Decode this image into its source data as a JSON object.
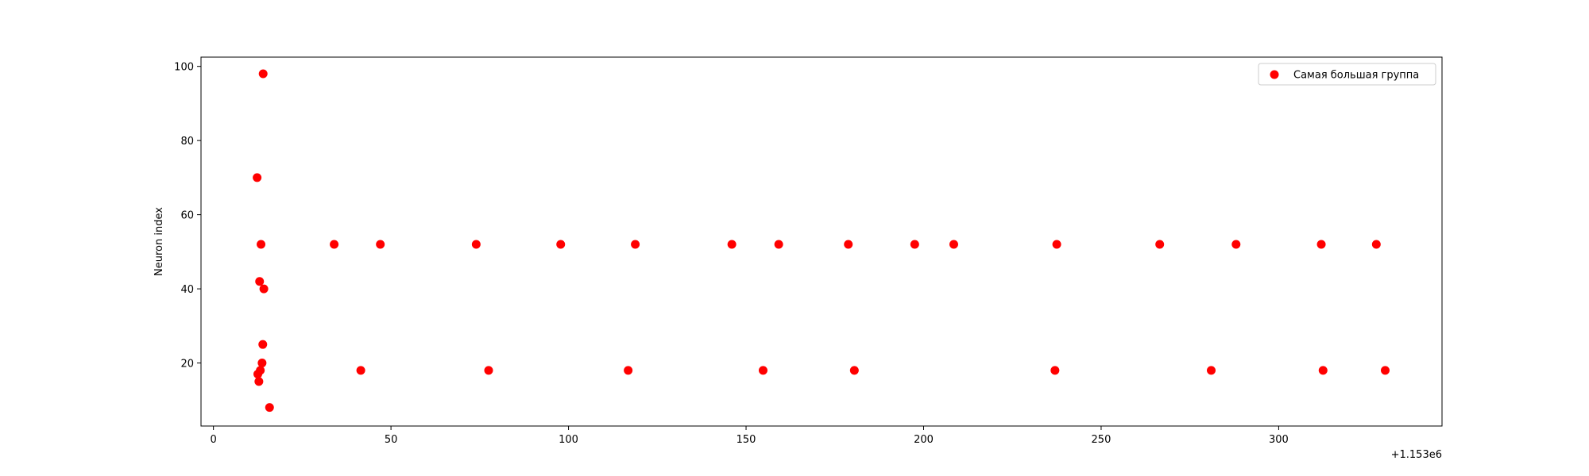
{
  "chart_data": {
    "type": "scatter",
    "title": "",
    "xlabel": "",
    "ylabel": "Neuron index",
    "x_offset_label": "+1.153e6",
    "xlim": [
      -3.5,
      346
    ],
    "ylim": [
      3,
      102.5
    ],
    "xticks": [
      0,
      50,
      100,
      150,
      200,
      250,
      300
    ],
    "yticks": [
      20,
      40,
      60,
      80,
      100
    ],
    "grid": false,
    "legend_position": "upper right",
    "series": [
      {
        "name": "Самая большая группа",
        "color": "#ff0000",
        "points": [
          {
            "x": 12.3,
            "y": 70
          },
          {
            "x": 12.5,
            "y": 17
          },
          {
            "x": 12.8,
            "y": 15
          },
          {
            "x": 13.0,
            "y": 42
          },
          {
            "x": 13.2,
            "y": 18
          },
          {
            "x": 13.4,
            "y": 52
          },
          {
            "x": 13.7,
            "y": 20
          },
          {
            "x": 13.9,
            "y": 25
          },
          {
            "x": 14.0,
            "y": 98
          },
          {
            "x": 14.2,
            "y": 40
          },
          {
            "x": 15.8,
            "y": 8
          },
          {
            "x": 34.0,
            "y": 52
          },
          {
            "x": 41.5,
            "y": 18
          },
          {
            "x": 47.0,
            "y": 52
          },
          {
            "x": 74.0,
            "y": 52
          },
          {
            "x": 77.5,
            "y": 18
          },
          {
            "x": 97.8,
            "y": 52
          },
          {
            "x": 116.8,
            "y": 18
          },
          {
            "x": 118.8,
            "y": 52
          },
          {
            "x": 146.0,
            "y": 52
          },
          {
            "x": 154.8,
            "y": 18
          },
          {
            "x": 159.2,
            "y": 52
          },
          {
            "x": 178.8,
            "y": 52
          },
          {
            "x": 180.5,
            "y": 18
          },
          {
            "x": 197.5,
            "y": 52
          },
          {
            "x": 208.5,
            "y": 52
          },
          {
            "x": 237.0,
            "y": 18
          },
          {
            "x": 237.5,
            "y": 52
          },
          {
            "x": 266.5,
            "y": 52
          },
          {
            "x": 281.0,
            "y": 18
          },
          {
            "x": 288.0,
            "y": 52
          },
          {
            "x": 312.0,
            "y": 52
          },
          {
            "x": 312.5,
            "y": 18
          },
          {
            "x": 327.5,
            "y": 52
          },
          {
            "x": 330.0,
            "y": 18
          }
        ]
      }
    ]
  }
}
